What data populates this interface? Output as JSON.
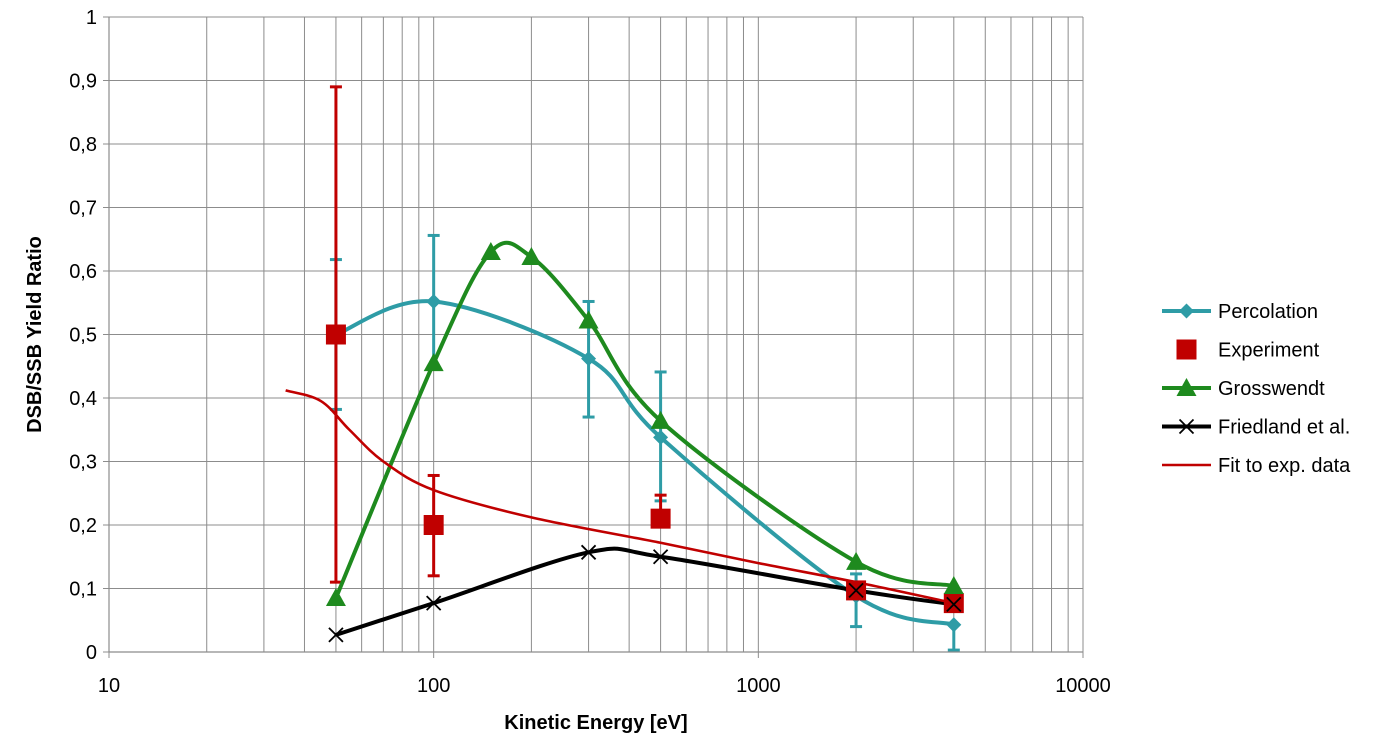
{
  "chart_data": {
    "type": "scatter",
    "title": "",
    "xlabel": "Kinetic Energy [eV]",
    "ylabel": "DSB/SSB Yield Ratio",
    "x_scale": "log",
    "xlim": [
      10,
      10000
    ],
    "ylim": [
      0,
      1
    ],
    "x_ticks": [
      "10",
      "100",
      "1000",
      "10000"
    ],
    "y_ticks": [
      "0",
      "0,1",
      "0,2",
      "0,3",
      "0,4",
      "0,5",
      "0,6",
      "0,7",
      "0,8",
      "0,9",
      "1"
    ],
    "grid": true,
    "legend_position": "right",
    "series": [
      {
        "name": "Percolation",
        "color": "#2E9CA6",
        "marker": "diamond",
        "line": "smooth",
        "x": [
          50,
          100,
          300,
          500,
          2000,
          4000
        ],
        "y": [
          0.5,
          0.552,
          0.462,
          0.338,
          0.088,
          0.043
        ],
        "err_low": [
          0.118,
          0.104,
          0.092,
          0.1,
          0.048,
          0.04
        ],
        "err_high": [
          0.118,
          0.104,
          0.09,
          0.103,
          0.035,
          0.0
        ]
      },
      {
        "name": "Experiment",
        "color": "#C00000",
        "marker": "square",
        "line": "none",
        "x": [
          50,
          100,
          500,
          2000,
          4000
        ],
        "y": [
          0.5,
          0.2,
          0.21,
          0.097,
          0.077
        ],
        "err_low": [
          0.39,
          0.08,
          0.0,
          0.0,
          0.0
        ],
        "err_high": [
          0.39,
          0.078,
          0.037,
          0.0,
          0.0
        ]
      },
      {
        "name": "Grosswendt",
        "color": "#1E8A1E",
        "marker": "triangle",
        "line": "smooth",
        "x": [
          50,
          100,
          150,
          200,
          300,
          500,
          2000,
          4000
        ],
        "y": [
          0.085,
          0.455,
          0.63,
          0.622,
          0.522,
          0.364,
          0.142,
          0.104
        ]
      },
      {
        "name": "Friedland et al.",
        "color": "#000000",
        "marker": "x",
        "line": "smooth",
        "x": [
          50,
          100,
          300,
          500,
          2000,
          4000
        ],
        "y": [
          0.027,
          0.077,
          0.157,
          0.15,
          0.097,
          0.075
        ]
      },
      {
        "name": "Fit to exp. data",
        "color": "#C00000",
        "marker": "none",
        "line": "smooth",
        "x": [
          35,
          45,
          55,
          70,
          100,
          200,
          500,
          1000,
          2000,
          4000
        ],
        "y": [
          0.412,
          0.395,
          0.35,
          0.3,
          0.255,
          0.212,
          0.172,
          0.14,
          0.11,
          0.077
        ]
      }
    ]
  }
}
